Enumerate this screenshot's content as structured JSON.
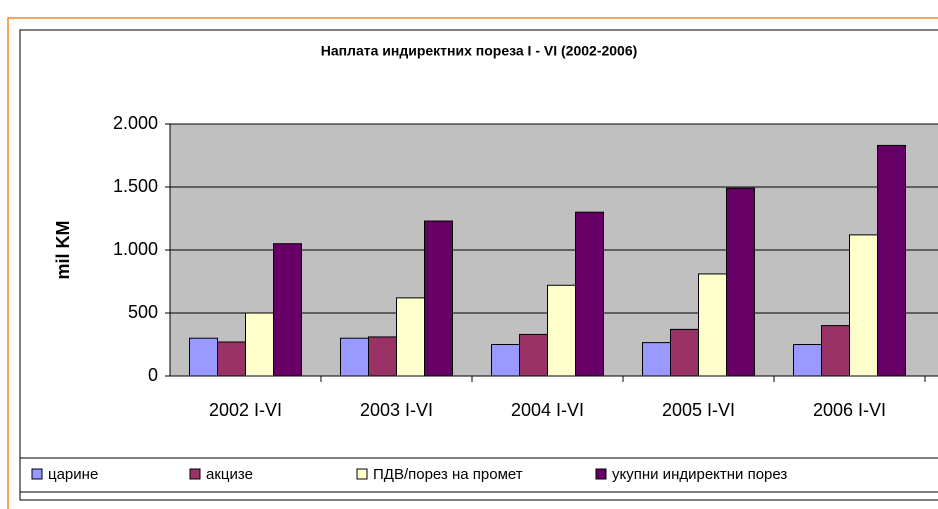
{
  "chart_data": {
    "type": "bar",
    "title": "Наплата индиректних пореза I - VI  (2002-2006)",
    "y_label": "mil KM",
    "categories": [
      "2002 I-VI",
      "2003 I-VI",
      "2004 I-VI",
      "2005 I-VI",
      "2006 I-VI"
    ],
    "series": [
      {
        "name": "царине",
        "color": "#9999ff",
        "values": [
          300,
          300,
          250,
          265,
          250
        ]
      },
      {
        "name": "акцизе",
        "color": "#993366",
        "values": [
          270,
          310,
          330,
          370,
          400
        ]
      },
      {
        "name": "ПДВ/порез на промет",
        "color": "#ffffcc",
        "values": [
          500,
          620,
          720,
          810,
          1120
        ]
      },
      {
        "name": "укупни индиректни порез",
        "color": "#660066",
        "values": [
          1050,
          1230,
          1300,
          1490,
          1830
        ]
      }
    ],
    "ylim": [
      0,
      2000
    ],
    "yticks": [
      0,
      500,
      {
        "value": 1000,
        "label": "1.000"
      },
      {
        "value": 1500,
        "label": "1.500"
      },
      {
        "value": 2000,
        "label": "2.000"
      }
    ],
    "grid": true,
    "legend": "bottom"
  }
}
